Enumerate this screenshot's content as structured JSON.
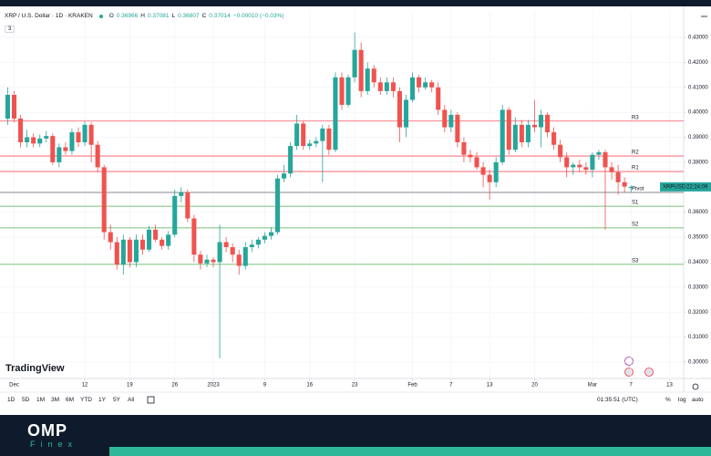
{
  "chart_data": {
    "type": "candlestick",
    "title": "XRP / U.S. Dollar · 1D · KRAKEN",
    "ohlc_labels": [
      "O",
      "H",
      "L",
      "C"
    ],
    "change": "−0.00010 (−0.03%)",
    "indicator_count": "3",
    "up_color": "#26a69a",
    "down_color": "#ef5350",
    "grid": true,
    "x": [
      -1,
      0,
      1,
      2,
      3,
      4,
      5,
      6,
      7,
      8,
      9,
      10,
      11,
      12,
      13,
      14,
      15,
      16,
      17,
      18,
      19,
      20,
      21,
      22,
      23,
      24,
      25,
      26,
      27,
      28,
      29,
      30,
      31,
      32,
      33,
      34,
      35,
      36,
      37,
      38,
      39,
      40,
      41,
      42,
      43,
      44,
      45,
      46,
      47,
      48,
      49,
      50,
      51,
      52,
      53,
      54,
      55,
      56,
      57,
      58,
      59,
      60,
      61,
      62,
      63,
      64,
      65,
      66,
      67,
      68,
      69,
      70,
      71,
      72,
      73,
      74,
      75,
      76,
      77,
      78,
      79,
      80,
      81,
      82,
      83,
      84,
      85,
      86,
      87,
      88,
      89,
      90,
      91,
      92,
      93,
      94,
      95,
      96
    ],
    "open": [
      0.3975,
      0.407,
      0.3975,
      0.388,
      0.39,
      0.3875,
      0.3895,
      0.3905,
      0.38,
      0.386,
      0.3845,
      0.392,
      0.388,
      0.395,
      0.387,
      0.378,
      0.352,
      0.348,
      0.339,
      0.349,
      0.34,
      0.349,
      0.345,
      0.353,
      0.349,
      0.3465,
      0.351,
      0.3665,
      0.368,
      0.3575,
      0.343,
      0.3395,
      0.341,
      0.34,
      0.348,
      0.346,
      0.343,
      0.3385,
      0.346,
      0.347,
      0.349,
      0.3505,
      0.352,
      0.3735,
      0.3755,
      0.3865,
      0.3955,
      0.3865,
      0.3875,
      0.3885,
      0.3935,
      0.385,
      0.414,
      0.403,
      0.414,
      0.425,
      0.4085,
      0.4175,
      0.412,
      0.4085,
      0.412,
      0.4085,
      0.394,
      0.405,
      0.414,
      0.41,
      0.412,
      0.41,
      0.401,
      0.394,
      0.399,
      0.388,
      0.383,
      0.382,
      0.378,
      0.375,
      0.372,
      0.38,
      0.401,
      0.385,
      0.395,
      0.388,
      0.395,
      0.394,
      0.399,
      0.392,
      0.387,
      0.382,
      0.378,
      0.379,
      0.378,
      0.377,
      0.383,
      0.384,
      0.378,
      0.376,
      0.372,
      0.36966
    ],
    "high": [
      0.41,
      0.4085,
      0.399,
      0.393,
      0.3915,
      0.391,
      0.3925,
      0.3915,
      0.3875,
      0.388,
      0.3935,
      0.394,
      0.3965,
      0.396,
      0.3885,
      0.379,
      0.355,
      0.35,
      0.351,
      0.35,
      0.351,
      0.351,
      0.3545,
      0.355,
      0.35,
      0.3525,
      0.369,
      0.37,
      0.369,
      0.359,
      0.3445,
      0.343,
      0.342,
      0.355,
      0.35,
      0.3475,
      0.345,
      0.348,
      0.349,
      0.35,
      0.352,
      0.354,
      0.375,
      0.379,
      0.388,
      0.399,
      0.3965,
      0.389,
      0.39,
      0.395,
      0.395,
      0.416,
      0.416,
      0.415,
      0.432,
      0.428,
      0.42,
      0.419,
      0.414,
      0.414,
      0.414,
      0.41,
      0.407,
      0.416,
      0.415,
      0.414,
      0.413,
      0.412,
      0.403,
      0.401,
      0.4,
      0.39,
      0.385,
      0.384,
      0.38,
      0.377,
      0.382,
      0.403,
      0.402,
      0.398,
      0.397,
      0.397,
      0.405,
      0.401,
      0.4,
      0.394,
      0.389,
      0.384,
      0.38,
      0.381,
      0.38,
      0.384,
      0.385,
      0.385,
      0.38,
      0.379,
      0.374,
      0.37081
    ],
    "low": [
      0.395,
      0.396,
      0.386,
      0.386,
      0.386,
      0.386,
      0.388,
      0.379,
      0.378,
      0.383,
      0.383,
      0.386,
      0.3865,
      0.38,
      0.376,
      0.349,
      0.345,
      0.337,
      0.335,
      0.338,
      0.338,
      0.343,
      0.344,
      0.348,
      0.345,
      0.345,
      0.35,
      0.364,
      0.356,
      0.34,
      0.337,
      0.338,
      0.338,
      0.3015,
      0.344,
      0.34,
      0.335,
      0.337,
      0.344,
      0.3455,
      0.3475,
      0.349,
      0.351,
      0.372,
      0.374,
      0.385,
      0.385,
      0.385,
      0.386,
      0.372,
      0.383,
      0.384,
      0.401,
      0.402,
      0.412,
      0.406,
      0.407,
      0.41,
      0.407,
      0.407,
      0.406,
      0.388,
      0.39,
      0.404,
      0.408,
      0.409,
      0.408,
      0.399,
      0.392,
      0.392,
      0.386,
      0.38,
      0.38,
      0.377,
      0.37,
      0.365,
      0.37,
      0.379,
      0.383,
      0.384,
      0.386,
      0.386,
      0.392,
      0.386,
      0.39,
      0.385,
      0.38,
      0.374,
      0.375,
      0.376,
      0.375,
      0.374,
      0.381,
      0.353,
      0.373,
      0.367,
      0.368,
      0.36807
    ],
    "close": [
      0.407,
      0.3975,
      0.388,
      0.39,
      0.3875,
      0.3895,
      0.3905,
      0.38,
      0.386,
      0.3845,
      0.392,
      0.388,
      0.395,
      0.387,
      0.378,
      0.352,
      0.348,
      0.339,
      0.349,
      0.34,
      0.349,
      0.345,
      0.353,
      0.349,
      0.3465,
      0.351,
      0.3665,
      0.368,
      0.3575,
      0.343,
      0.3395,
      0.341,
      0.34,
      0.348,
      0.346,
      0.343,
      0.3385,
      0.346,
      0.347,
      0.349,
      0.3505,
      0.352,
      0.3735,
      0.3755,
      0.3865,
      0.3955,
      0.3865,
      0.3875,
      0.3885,
      0.3935,
      0.385,
      0.414,
      0.403,
      0.414,
      0.425,
      0.4085,
      0.4175,
      0.412,
      0.4085,
      0.412,
      0.4085,
      0.394,
      0.405,
      0.414,
      0.41,
      0.412,
      0.41,
      0.401,
      0.394,
      0.399,
      0.388,
      0.383,
      0.382,
      0.378,
      0.375,
      0.372,
      0.38,
      0.401,
      0.385,
      0.395,
      0.388,
      0.395,
      0.394,
      0.399,
      0.392,
      0.387,
      0.382,
      0.378,
      0.379,
      0.378,
      0.377,
      0.383,
      0.384,
      0.378,
      0.376,
      0.372,
      0.37024,
      0.37014
    ],
    "xlim": [
      -2.2,
      104.2
    ],
    "ylim": [
      0.2934,
      0.4406
    ],
    "xticks": [
      {
        "value": 0,
        "label": "Dec"
      },
      {
        "value": 11,
        "label": "12"
      },
      {
        "value": 18,
        "label": "19"
      },
      {
        "value": 25,
        "label": "26"
      },
      {
        "value": 31,
        "label": "2023"
      },
      {
        "value": 39,
        "label": "9"
      },
      {
        "value": 46,
        "label": "16"
      },
      {
        "value": 53,
        "label": "23"
      },
      {
        "value": 62,
        "label": "Feb"
      },
      {
        "value": 68,
        "label": "7"
      },
      {
        "value": 74,
        "label": "13"
      },
      {
        "value": 81,
        "label": "20"
      },
      {
        "value": 90,
        "label": "Mar"
      },
      {
        "value": 96,
        "label": "7"
      },
      {
        "value": 102,
        "label": "13"
      }
    ],
    "yticks": [
      {
        "value": 0.43,
        "label": "0.43000"
      },
      {
        "value": 0.42,
        "label": "0.42000"
      },
      {
        "value": 0.41,
        "label": "0.41000"
      },
      {
        "value": 0.4,
        "label": "0.40000"
      },
      {
        "value": 0.39,
        "label": "0.39000"
      },
      {
        "value": 0.38,
        "label": "0.38000"
      },
      {
        "value": 0.36,
        "label": "0.36000"
      },
      {
        "value": 0.35,
        "label": "0.35000"
      },
      {
        "value": 0.34,
        "label": "0.34000"
      },
      {
        "value": 0.33,
        "label": "0.33000"
      },
      {
        "value": 0.32,
        "label": "0.32000"
      },
      {
        "value": 0.31,
        "label": "0.31000"
      },
      {
        "value": 0.3,
        "label": "0.30000"
      }
    ],
    "levels": [
      {
        "label": "R3",
        "value": 0.3965,
        "color": "#f7525f"
      },
      {
        "label": "R2",
        "value": 0.3825,
        "color": "#f7525f"
      },
      {
        "label": "R1",
        "value": 0.3763,
        "color": "#f7525f"
      },
      {
        "label": "Pivot",
        "value": 0.3679,
        "color": "#5d606b"
      },
      {
        "label": "S1",
        "value": 0.3624,
        "color": "#4caf50"
      },
      {
        "label": "S2",
        "value": 0.3537,
        "color": "#4caf50"
      },
      {
        "label": "S3",
        "value": 0.3391,
        "color": "#4caf50"
      }
    ],
    "price_label": {
      "symbol": "XRPUSD",
      "countdown": "22:24:09"
    }
  },
  "logo": "TradingView",
  "toolbar": {
    "ranges": [
      "1D",
      "5D",
      "1M",
      "3M",
      "6M",
      "YTD",
      "1Y",
      "5Y",
      "All"
    ],
    "time": "01:35:51 (UTC)",
    "options": [
      "%",
      "log",
      "auto"
    ]
  },
  "brand": {
    "name": "OMP",
    "sub": "Finex"
  }
}
